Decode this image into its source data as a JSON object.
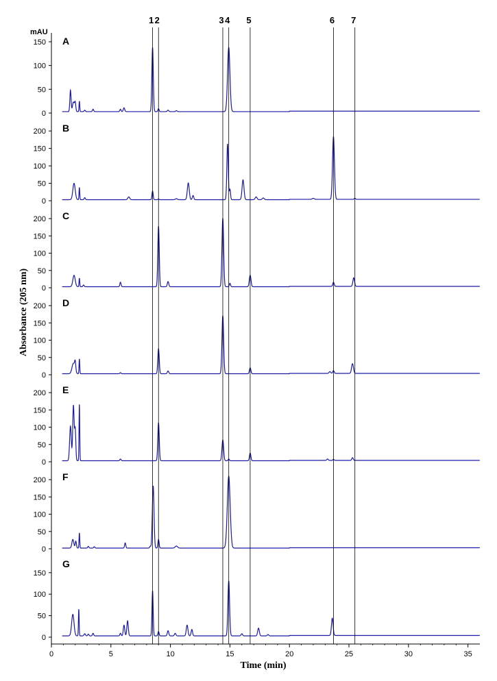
{
  "chart_data": {
    "type": "line",
    "x_label": "Time (min)",
    "y_label": "Absorbance (205 nm)",
    "y_unit": "mAU",
    "x_range": [
      0,
      36
    ],
    "x_ticks": [
      0,
      5,
      10,
      15,
      20,
      25,
      30,
      35
    ],
    "marker_lines": [
      {
        "label": "1",
        "time": 8.5
      },
      {
        "label": "2",
        "time": 9.0
      },
      {
        "label": "3",
        "time": 14.4
      },
      {
        "label": "4",
        "time": 14.9
      },
      {
        "label": "5",
        "time": 16.7
      },
      {
        "label": "6",
        "time": 23.7
      },
      {
        "label": "7",
        "time": 25.5
      }
    ],
    "line_color": "#1a1aa6",
    "panels": [
      {
        "label": "A",
        "ylim": [
          0,
          160
        ],
        "y_ticks": [
          0,
          50,
          100,
          150
        ],
        "baseline": 3,
        "peaks": [
          [
            1.6,
            45,
            0.05
          ],
          [
            1.85,
            20,
            0.08
          ],
          [
            2.0,
            18,
            0.05
          ],
          [
            2.35,
            22,
            0.03
          ],
          [
            2.8,
            3,
            0.05
          ],
          [
            3.5,
            5,
            0.05
          ],
          [
            5.8,
            5,
            0.05
          ],
          [
            6.1,
            8,
            0.06
          ],
          [
            8.5,
            135,
            0.06
          ],
          [
            9.0,
            6,
            0.05
          ],
          [
            9.8,
            3,
            0.06
          ],
          [
            10.5,
            2,
            0.06
          ],
          [
            14.9,
            135,
            0.1
          ]
        ]
      },
      {
        "label": "B",
        "ylim": [
          0,
          220
        ],
        "y_ticks": [
          0,
          50,
          100,
          150,
          200
        ],
        "baseline": 3,
        "peaks": [
          [
            1.9,
            47,
            0.1
          ],
          [
            2.35,
            35,
            0.03
          ],
          [
            2.8,
            6,
            0.05
          ],
          [
            6.5,
            8,
            0.08
          ],
          [
            8.5,
            25,
            0.05
          ],
          [
            9.0,
            2,
            0.05
          ],
          [
            10.5,
            3,
            0.08
          ],
          [
            11.5,
            48,
            0.08
          ],
          [
            11.9,
            12,
            0.06
          ],
          [
            14.8,
            160,
            0.06
          ],
          [
            15.0,
            30,
            0.05
          ],
          [
            16.1,
            57,
            0.08
          ],
          [
            17.2,
            8,
            0.08
          ],
          [
            17.8,
            5,
            0.08
          ],
          [
            22,
            3,
            0.08
          ],
          [
            23.7,
            180,
            0.08
          ],
          [
            25.5,
            3,
            0.06
          ]
        ]
      },
      {
        "label": "C",
        "ylim": [
          0,
          220
        ],
        "y_ticks": [
          0,
          50,
          100,
          150,
          200
        ],
        "baseline": 3,
        "peaks": [
          [
            1.9,
            33,
            0.1
          ],
          [
            2.35,
            25,
            0.03
          ],
          [
            2.7,
            5,
            0.05
          ],
          [
            5.8,
            13,
            0.05
          ],
          [
            9.0,
            175,
            0.06
          ],
          [
            9.8,
            15,
            0.06
          ],
          [
            14.4,
            198,
            0.07
          ],
          [
            15.0,
            10,
            0.05
          ],
          [
            16.7,
            33,
            0.07
          ],
          [
            23.7,
            12,
            0.06
          ],
          [
            25.4,
            25,
            0.07
          ]
        ]
      },
      {
        "label": "D",
        "ylim": [
          0,
          220
        ],
        "y_ticks": [
          0,
          50,
          100,
          150,
          200
        ],
        "baseline": 3,
        "peaks": [
          [
            1.85,
            30,
            0.12
          ],
          [
            2.0,
            25,
            0.05
          ],
          [
            2.35,
            43,
            0.03
          ],
          [
            5.8,
            3,
            0.05
          ],
          [
            9.0,
            72,
            0.06
          ],
          [
            9.8,
            8,
            0.06
          ],
          [
            14.4,
            168,
            0.07
          ],
          [
            16.7,
            17,
            0.06
          ],
          [
            23.4,
            5,
            0.07
          ],
          [
            23.7,
            8,
            0.06
          ],
          [
            25.3,
            28,
            0.08
          ]
        ]
      },
      {
        "label": "E",
        "ylim": [
          0,
          220
        ],
        "y_ticks": [
          0,
          50,
          100,
          150,
          200
        ],
        "baseline": 3,
        "peaks": [
          [
            1.6,
            100,
            0.07
          ],
          [
            1.85,
            160,
            0.06
          ],
          [
            2.0,
            90,
            0.05
          ],
          [
            2.35,
            163,
            0.03
          ],
          [
            5.8,
            5,
            0.05
          ],
          [
            9.0,
            110,
            0.06
          ],
          [
            14.4,
            60,
            0.07
          ],
          [
            14.9,
            5,
            0.05
          ],
          [
            16.7,
            22,
            0.06
          ],
          [
            23.2,
            4,
            0.06
          ],
          [
            23.7,
            3,
            0.05
          ],
          [
            25.3,
            8,
            0.06
          ]
        ]
      },
      {
        "label": "F",
        "ylim": [
          0,
          220
        ],
        "y_ticks": [
          0,
          50,
          100,
          150,
          200
        ],
        "baseline": 2,
        "peaks": [
          [
            1.8,
            25,
            0.08
          ],
          [
            2.05,
            20,
            0.05
          ],
          [
            2.35,
            44,
            0.03
          ],
          [
            3.1,
            5,
            0.05
          ],
          [
            3.6,
            4,
            0.05
          ],
          [
            6.2,
            15,
            0.05
          ],
          [
            8.3,
            5,
            0.05
          ],
          [
            8.55,
            180,
            0.07
          ],
          [
            9.0,
            25,
            0.05
          ],
          [
            10.5,
            6,
            0.1
          ],
          [
            14.9,
            208,
            0.12
          ]
        ]
      },
      {
        "label": "G",
        "ylim": [
          0,
          180
        ],
        "y_ticks": [
          0,
          50,
          100,
          150
        ],
        "baseline": 3,
        "peaks": [
          [
            1.8,
            50,
            0.1
          ],
          [
            2.3,
            62,
            0.03
          ],
          [
            2.8,
            5,
            0.06
          ],
          [
            3.1,
            4,
            0.05
          ],
          [
            3.5,
            6,
            0.05
          ],
          [
            5.8,
            6,
            0.05
          ],
          [
            6.1,
            25,
            0.06
          ],
          [
            6.4,
            35,
            0.06
          ],
          [
            8.5,
            105,
            0.05
          ],
          [
            9.0,
            10,
            0.05
          ],
          [
            9.8,
            12,
            0.06
          ],
          [
            10.4,
            6,
            0.06
          ],
          [
            11.4,
            25,
            0.07
          ],
          [
            11.8,
            15,
            0.06
          ],
          [
            14.9,
            128,
            0.07
          ],
          [
            16.0,
            5,
            0.06
          ],
          [
            17.4,
            18,
            0.07
          ],
          [
            18.2,
            3,
            0.06
          ],
          [
            23.6,
            40,
            0.07
          ]
        ]
      }
    ]
  }
}
